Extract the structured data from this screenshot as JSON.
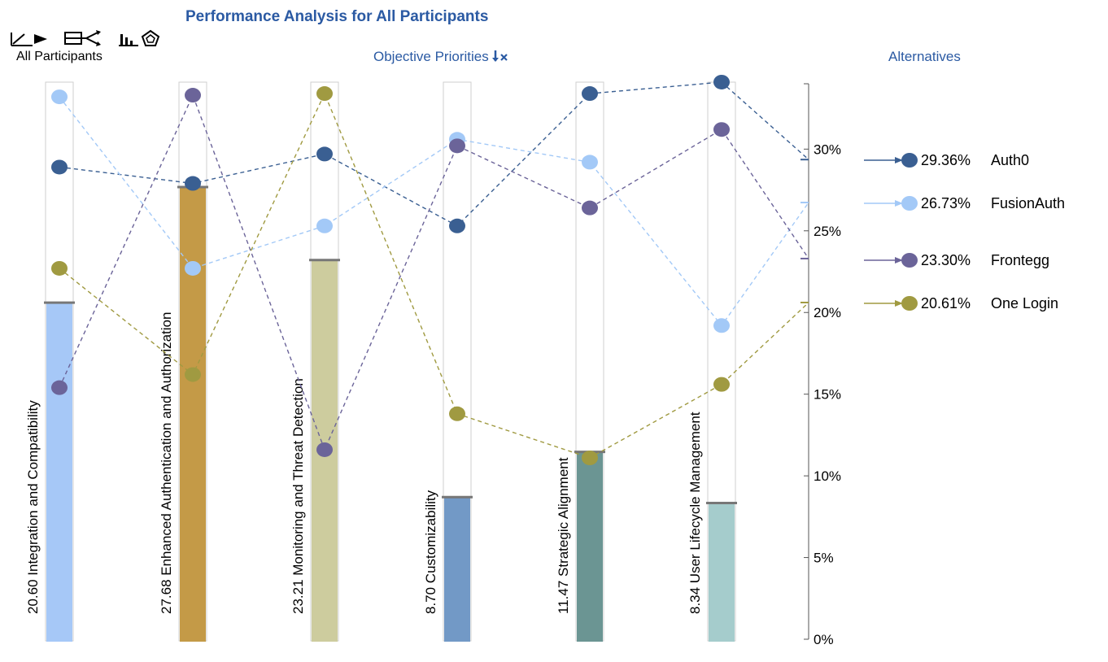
{
  "header": {
    "title": "Performance Analysis for All Participants",
    "participants_label": "All Participants",
    "objective_priorities_label": "Objective Priorities",
    "alternatives_label": "Alternatives"
  },
  "toolbar": {
    "icons": [
      "line-chart-icon",
      "flow-diagram-icon",
      "bar-radar-chart-icon"
    ],
    "sort_icon": "sort-clear-icon"
  },
  "colors": {
    "title": "#2b5aa3",
    "axis": "#555555",
    "column_outline": "#cfcfcf"
  },
  "chart_data": {
    "type": "bar",
    "ylim": [
      0,
      34
    ],
    "y_ticks": [
      "0%",
      "5%",
      "10%",
      "15%",
      "20%",
      "25%",
      "30%"
    ],
    "objectives": [
      {
        "label": "20.60 Integration and Compatibility",
        "priority": 20.6,
        "color": "#a6c8f7"
      },
      {
        "label": "27.68 Enhanced Authentication and Authorization",
        "priority": 27.68,
        "color": "#c49a47"
      },
      {
        "label": "23.21 Monitoring and Threat Detection",
        "priority": 23.21,
        "color": "#cdcc9e"
      },
      {
        "label": "8.70 Customizability",
        "priority": 8.7,
        "color": "#7299c6"
      },
      {
        "label": "11.47 Strategic Alignment",
        "priority": 11.47,
        "color": "#6b9593"
      },
      {
        "label": "8.34 User Lifecycle Management",
        "priority": 8.34,
        "color": "#a5cccc"
      }
    ],
    "series": [
      {
        "name": "Auth0",
        "total_label": "29.36%",
        "total": 29.36,
        "color": "#3a5f92",
        "values": [
          28.9,
          27.9,
          29.7,
          25.3,
          33.4,
          34.1
        ]
      },
      {
        "name": "FusionAuth",
        "total_label": "26.73%",
        "total": 26.73,
        "color": "#a3c9f7",
        "values": [
          33.2,
          22.7,
          25.3,
          30.6,
          29.2,
          19.2
        ]
      },
      {
        "name": "Frontegg",
        "total_label": "23.30%",
        "total": 23.3,
        "color": "#6b6499",
        "values": [
          15.4,
          33.3,
          11.6,
          30.2,
          26.4,
          31.2
        ]
      },
      {
        "name": "One Login",
        "total_label": "20.61%",
        "total": 20.61,
        "color": "#a09a41",
        "values": [
          22.7,
          16.2,
          33.4,
          13.8,
          11.1,
          15.6
        ]
      }
    ]
  }
}
